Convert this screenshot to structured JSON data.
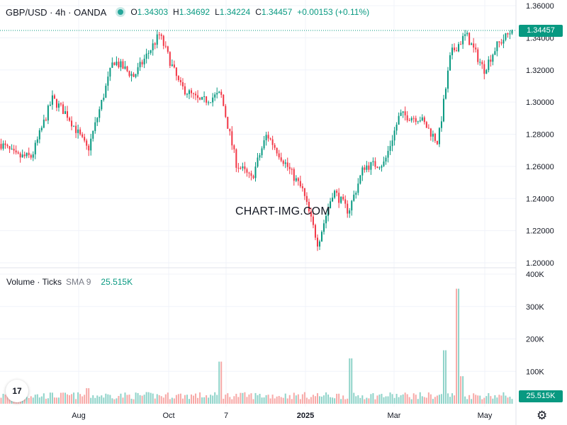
{
  "header": {
    "symbol": "GBP/USD · 4h · OANDA",
    "open_label": "O",
    "open": "1.34303",
    "high_label": "H",
    "high": "1.34692",
    "low_label": "L",
    "low": "1.34224",
    "close_label": "C",
    "close": "1.34457",
    "change": "+0.00153 (+0.11%)"
  },
  "volume_header": {
    "label": "Volume · Ticks",
    "sma": "SMA 9",
    "value": "25.515K"
  },
  "watermark": "CHART-IMG.COM",
  "last_price_tag": "1.34457",
  "volume_tag": "25.515K",
  "logo_text": "17",
  "icons": {
    "settings": "gear-icon",
    "logo": "tradingview-logo"
  },
  "colors": {
    "up": "#089981",
    "down": "#f23645",
    "vol_up": "#8fd3c9",
    "vol_down": "#f7a9a7",
    "grid": "#f0f3fa"
  },
  "chart_data": [
    {
      "type": "candlestick",
      "title": "GBP/USD · 4h · OANDA",
      "y_axis": {
        "side": "right",
        "ticks": [
          1.2,
          1.22,
          1.24,
          1.26,
          1.28,
          1.3,
          1.32,
          1.34,
          1.36
        ],
        "tick_labels": [
          "1.20000",
          "1.22000",
          "1.24000",
          "1.26000",
          "1.28000",
          "1.30000",
          "1.32000",
          "1.34000",
          "1.36000"
        ],
        "ylim": [
          1.198,
          1.362
        ]
      },
      "x_axis": {
        "tick_labels": [
          "Aug",
          "Oct",
          "7",
          "2025",
          "Mar",
          "May"
        ],
        "tick_bold": [
          false,
          false,
          false,
          true,
          false,
          false
        ]
      },
      "x_span_months": [
        "2024-07",
        "2025-05"
      ],
      "approx_close_path": [
        {
          "t": 0.0,
          "y": 1.274
        },
        {
          "t": 0.03,
          "y": 1.266
        },
        {
          "t": 0.06,
          "y": 1.266
        },
        {
          "t": 0.1,
          "y": 1.302
        },
        {
          "t": 0.13,
          "y": 1.292
        },
        {
          "t": 0.17,
          "y": 1.27
        },
        {
          "t": 0.22,
          "y": 1.326
        },
        {
          "t": 0.26,
          "y": 1.316
        },
        {
          "t": 0.31,
          "y": 1.342
        },
        {
          "t": 0.35,
          "y": 1.31
        },
        {
          "t": 0.39,
          "y": 1.3
        },
        {
          "t": 0.43,
          "y": 1.305
        },
        {
          "t": 0.46,
          "y": 1.262
        },
        {
          "t": 0.49,
          "y": 1.252
        },
        {
          "t": 0.52,
          "y": 1.28
        },
        {
          "t": 0.55,
          "y": 1.265
        },
        {
          "t": 0.59,
          "y": 1.245
        },
        {
          "t": 0.62,
          "y": 1.212
        },
        {
          "t": 0.65,
          "y": 1.245
        },
        {
          "t": 0.68,
          "y": 1.232
        },
        {
          "t": 0.71,
          "y": 1.26
        },
        {
          "t": 0.75,
          "y": 1.262
        },
        {
          "t": 0.78,
          "y": 1.292
        },
        {
          "t": 0.82,
          "y": 1.29
        },
        {
          "t": 0.855,
          "y": 1.275
        },
        {
          "t": 0.88,
          "y": 1.33
        },
        {
          "t": 0.91,
          "y": 1.342
        },
        {
          "t": 0.945,
          "y": 1.32
        },
        {
          "t": 0.97,
          "y": 1.335
        },
        {
          "t": 1.0,
          "y": 1.3446
        }
      ],
      "last": {
        "open": 1.34303,
        "high": 1.34692,
        "low": 1.34224,
        "close": 1.34457,
        "change": 0.00153,
        "change_pct": 0.11
      }
    },
    {
      "type": "bar",
      "title": "Volume · Ticks",
      "sma_period": 9,
      "sma_value": "25.515K",
      "y_axis": {
        "ticks": [
          100000,
          200000,
          300000,
          400000
        ],
        "tick_labels": [
          "100K",
          "200K",
          "300K",
          "400K"
        ],
        "ylim": [
          0,
          400000
        ]
      },
      "typical_volume": 25000,
      "spikes": [
        {
          "t": 0.17,
          "v": 48000
        },
        {
          "t": 0.43,
          "v": 130000
        },
        {
          "t": 0.685,
          "v": 140000
        },
        {
          "t": 0.87,
          "v": 165000
        },
        {
          "t": 0.895,
          "v": 355000
        },
        {
          "t": 0.9,
          "v": 85000
        }
      ]
    }
  ]
}
